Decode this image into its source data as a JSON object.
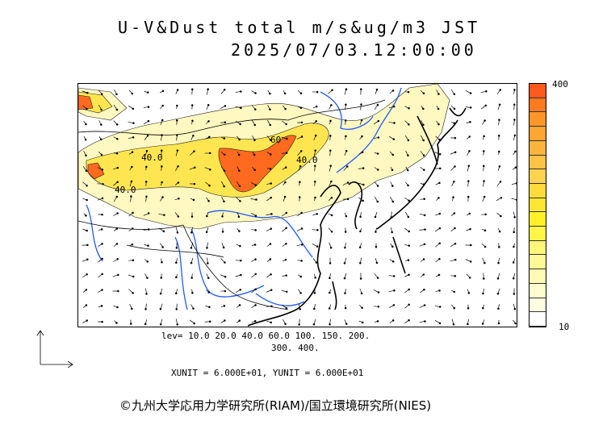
{
  "header": {
    "title": "U-V&Dust total m/s&ug/m3 JST",
    "timestamp": "2025/07/03.12:00:00"
  },
  "legend": {
    "max_label": "400",
    "min_label": "10",
    "colors_top_to_bottom": [
      "#ff5a1e",
      "#ff7a1e",
      "#ff9628",
      "#ffa532",
      "#ffb43c",
      "#ffc346",
      "#ffd250",
      "#ffdc3c",
      "#ffe632",
      "#fff028",
      "#fff546",
      "#fff578",
      "#fff896",
      "#fffab4",
      "#fffccd",
      "#fffde1",
      "#ffffff"
    ]
  },
  "contour_levels": {
    "line1": "lev= 10.0 20.0 40.0 60.0 100. 150. 200.",
    "line2": "300. 400."
  },
  "units": "XUNIT = 6.000E+01, YUNIT = 6.000E+01",
  "map_labels": [
    {
      "text": "40.0"
    },
    {
      "text": "40.0"
    },
    {
      "text": "40.0"
    },
    {
      "text": "60"
    }
  ],
  "credit": "©九州大学応用力学研究所(RIAM)/国立環境研究所(NIES)",
  "colors": {
    "coast": "#000000",
    "rivers": "#1e5aff",
    "dust_light": "#fff8b4",
    "dust_mid": "#ffe650",
    "dust_high": "#ff6a1e"
  }
}
